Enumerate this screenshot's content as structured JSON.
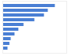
{
  "chart_data": {
    "type": "bar",
    "orientation": "horizontal",
    "categories": [
      null,
      null,
      null,
      null,
      null,
      null,
      null,
      null,
      null,
      null
    ],
    "values": [
      82,
      71,
      65,
      50,
      33,
      25,
      19,
      13,
      11,
      8
    ],
    "color": "#4a7fd4",
    "xlim": [
      0,
      100
    ],
    "tick_labels": false,
    "grid": false
  }
}
